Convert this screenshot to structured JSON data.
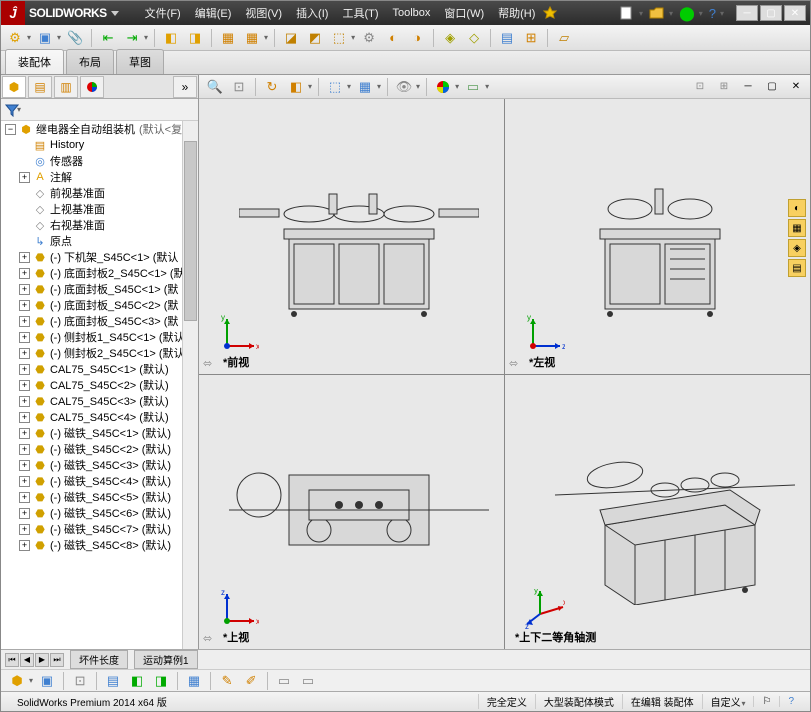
{
  "app": {
    "title_prefix": "SOLID",
    "title_suffix": "WORKS"
  },
  "menu": {
    "file": "文件(F)",
    "edit": "编辑(E)",
    "view": "视图(V)",
    "insert": "插入(I)",
    "tools": "工具(T)",
    "toolbox": "Toolbox",
    "window": "窗口(W)",
    "help": "帮助(H)"
  },
  "ribbon": {
    "assembly": "装配体",
    "layout": "布局",
    "sketch": "草图"
  },
  "tree": {
    "root": "继电器全自动组装机",
    "root_state": "(默认<复",
    "history": "History",
    "sensors": "传感器",
    "annotations": "注解",
    "front_plane": "前视基准面",
    "top_plane": "上视基准面",
    "right_plane": "右视基准面",
    "origin": "原点",
    "items": [
      "(-) 下机架_S45C<1> (默认",
      "(-) 底面封板2_S45C<1> (默",
      "(-) 底面封板_S45C<1> (默",
      "(-) 底面封板_S45C<2> (默",
      "(-) 底面封板_S45C<3> (默",
      "(-) 侧封板1_S45C<1> (默认",
      "(-) 侧封板2_S45C<1> (默认",
      "CAL75_S45C<1> (默认)",
      "CAL75_S45C<2> (默认)",
      "CAL75_S45C<3> (默认)",
      "CAL75_S45C<4> (默认)",
      "(-) 磁铁_S45C<1> (默认)",
      "(-) 磁铁_S45C<2> (默认)",
      "(-) 磁铁_S45C<3> (默认)",
      "(-) 磁铁_S45C<4> (默认)",
      "(-) 磁铁_S45C<5> (默认)",
      "(-) 磁铁_S45C<6> (默认)",
      "(-) 磁铁_S45C<7> (默认)",
      "(-) 磁铁_S45C<8> (默认)"
    ]
  },
  "viewports": {
    "front": "*前视",
    "left": "*左视",
    "top": "*上视",
    "iso": "*上下二等角轴测"
  },
  "bottom_tabs": {
    "model": "坏件长度",
    "motion": "运动算例1"
  },
  "status": {
    "version": "SolidWorks Premium 2014 x64 版",
    "define": "完全定义",
    "mode": "大型装配体模式",
    "edit": "在编辑 装配体",
    "custom": "自定义"
  },
  "colors": {
    "axis_x": "#d00000",
    "axis_y": "#00a000",
    "axis_z": "#0030d0"
  }
}
